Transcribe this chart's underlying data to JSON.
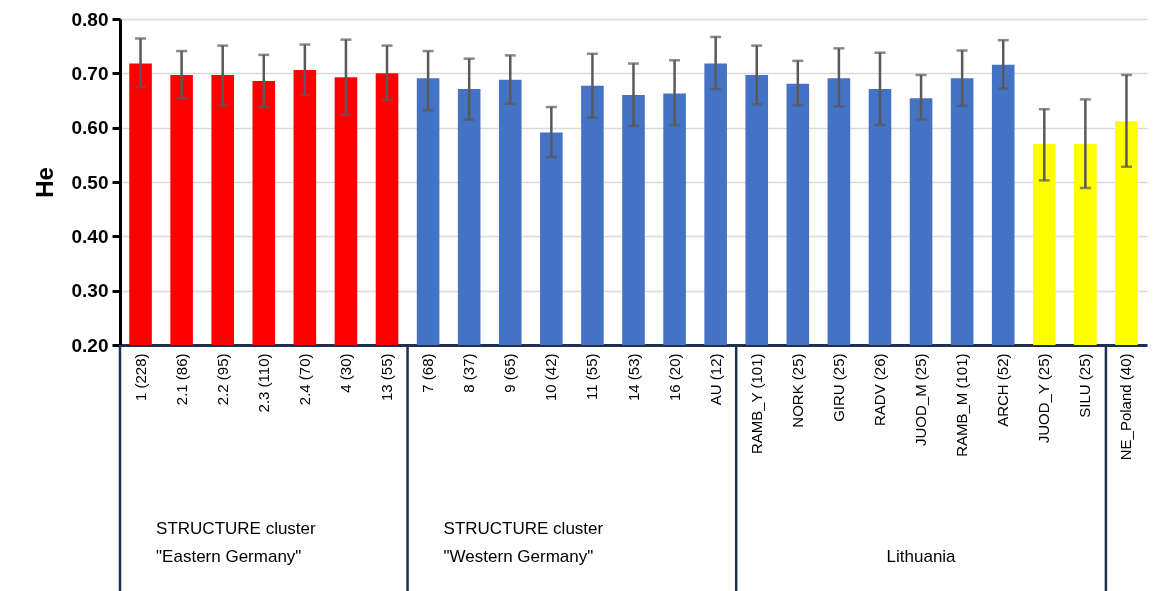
{
  "chart_data": {
    "type": "bar",
    "ylabel": "He",
    "categories": [
      "1 (228)",
      "2.1 (86)",
      "2.2 (95)",
      "2.3 (110)",
      "2.4 (70)",
      "4 (30)",
      "13 (55)",
      "7 (68)",
      "8 (37)",
      "9 (65)",
      "10 (42)",
      "11 (55)",
      "14 (53)",
      "16 (20)",
      "AU (12)",
      "RAMB_Y (101)",
      "NORK (25)",
      "GIRU (25)",
      "RADV (26)",
      "JUOD_M (25)",
      "RAMB_M (101)",
      "ARCH (52)",
      "JUOD_Y (25)",
      "SILU (25)",
      "NE_Poland (40)"
    ],
    "values": [
      0.718,
      0.697,
      0.697,
      0.686,
      0.706,
      0.693,
      0.7,
      0.691,
      0.671,
      0.688,
      0.591,
      0.677,
      0.66,
      0.663,
      0.718,
      0.697,
      0.681,
      0.691,
      0.671,
      0.654,
      0.691,
      0.716,
      0.57,
      0.57,
      0.612
    ],
    "colors": [
      "#ff0000",
      "#ff0000",
      "#ff0000",
      "#ff0000",
      "#ff0000",
      "#ff0000",
      "#ff0000",
      "#4472c4",
      "#4472c4",
      "#4472c4",
      "#4472c4",
      "#4472c4",
      "#4472c4",
      "#4472c4",
      "#4472c4",
      "#4472c4",
      "#4472c4",
      "#4472c4",
      "#4472c4",
      "#4472c4",
      "#4472c4",
      "#4472c4",
      "#ffff00",
      "#ffff00",
      "#ffff00"
    ],
    "errors": [
      [
        0.675,
        0.764
      ],
      [
        0.654,
        0.741
      ],
      [
        0.641,
        0.751
      ],
      [
        0.638,
        0.734
      ],
      [
        0.66,
        0.753
      ],
      [
        0.624,
        0.762
      ],
      [
        0.651,
        0.751
      ],
      [
        0.632,
        0.741
      ],
      [
        0.615,
        0.727
      ],
      [
        0.644,
        0.733
      ],
      [
        0.546,
        0.638
      ],
      [
        0.618,
        0.736
      ],
      [
        0.603,
        0.718
      ],
      [
        0.605,
        0.724
      ],
      [
        0.671,
        0.767
      ],
      [
        0.643,
        0.751
      ],
      [
        0.641,
        0.723
      ],
      [
        0.639,
        0.746
      ],
      [
        0.605,
        0.738
      ],
      [
        0.615,
        0.697
      ],
      [
        0.64,
        0.742
      ],
      [
        0.672,
        0.761
      ],
      [
        0.503,
        0.634
      ],
      [
        0.489,
        0.652
      ],
      [
        0.528,
        0.697
      ]
    ],
    "ylim": [
      0.2,
      0.8
    ],
    "yticks": [
      {
        "value": 0.2,
        "label": "0.20"
      },
      {
        "value": 0.3,
        "label": "0.30"
      },
      {
        "value": 0.4,
        "label": "0.40"
      },
      {
        "value": 0.5,
        "label": "0.50"
      },
      {
        "value": 0.6,
        "label": "0.60"
      },
      {
        "value": 0.7,
        "label": "0.70"
      },
      {
        "value": 0.8,
        "label": "0.80"
      }
    ],
    "grid": "y",
    "annotations": [
      "STRUCTURE cluster\n\"Eastern Germany\"",
      "STRUCTURE cluster\n\"Western Germany\"",
      "Lithuania"
    ]
  }
}
